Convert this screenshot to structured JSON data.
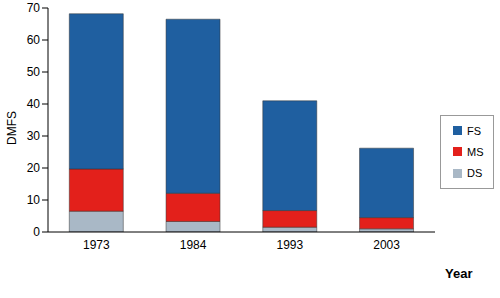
{
  "chart_data": {
    "type": "bar",
    "stacked": true,
    "x_label": "Year",
    "y_label": "DMFS",
    "categories": [
      "1973",
      "1984",
      "1993",
      "2003"
    ],
    "series": [
      {
        "name": "DS",
        "color": "#a9b8c6",
        "values": [
          6.5,
          3.3,
          1.5,
          1.0
        ]
      },
      {
        "name": "MS",
        "color": "#e3201b",
        "values": [
          13.2,
          8.8,
          5.2,
          3.5
        ]
      },
      {
        "name": "FS",
        "color": "#1f5fa0",
        "values": [
          48.5,
          54.4,
          34.3,
          21.7
        ]
      }
    ],
    "ylim": [
      0,
      70
    ],
    "yticks": [
      0,
      10,
      20,
      30,
      40,
      50,
      60,
      70
    ],
    "grid": false,
    "legend": "right"
  }
}
